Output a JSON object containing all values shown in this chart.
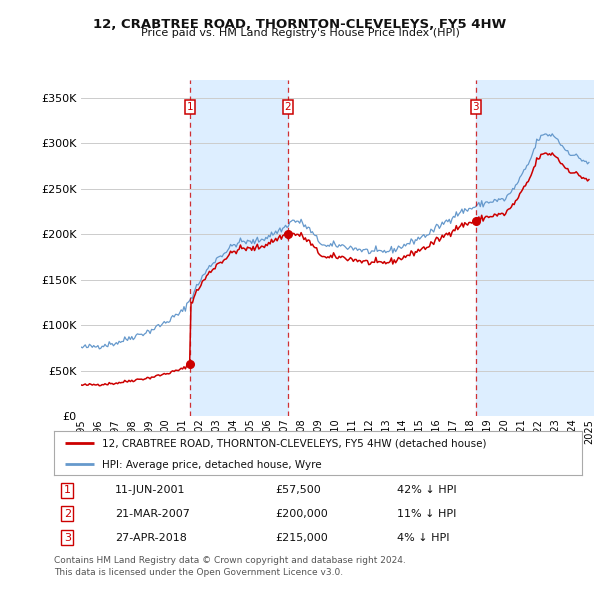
{
  "title": "12, CRABTREE ROAD, THORNTON-CLEVELEYS, FY5 4HW",
  "subtitle": "Price paid vs. HM Land Registry's House Price Index (HPI)",
  "xlim_start": 1995.0,
  "xlim_end": 2025.3,
  "ylim": [
    0,
    370000
  ],
  "yticks": [
    0,
    50000,
    100000,
    150000,
    200000,
    250000,
    300000,
    350000
  ],
  "ytick_labels": [
    "£0",
    "£50K",
    "£100K",
    "£150K",
    "£200K",
    "£250K",
    "£300K",
    "£350K"
  ],
  "xtick_years": [
    1995,
    1996,
    1997,
    1998,
    1999,
    2000,
    2001,
    2002,
    2003,
    2004,
    2005,
    2006,
    2007,
    2008,
    2009,
    2010,
    2011,
    2012,
    2013,
    2014,
    2015,
    2016,
    2017,
    2018,
    2019,
    2020,
    2021,
    2022,
    2023,
    2024,
    2025
  ],
  "sale_dates": [
    2001.44,
    2007.22,
    2018.32
  ],
  "sale_prices": [
    57500,
    200000,
    215000
  ],
  "sale_labels": [
    "1",
    "2",
    "3"
  ],
  "vline_color": "#cc0000",
  "sale_color": "#cc0000",
  "hpi_color": "#6699cc",
  "shade_color": "#ddeeff",
  "legend_label_sale": "12, CRABTREE ROAD, THORNTON-CLEVELEYS, FY5 4HW (detached house)",
  "legend_label_hpi": "HPI: Average price, detached house, Wyre",
  "table_rows": [
    [
      "1",
      "11-JUN-2001",
      "£57,500",
      "42% ↓ HPI"
    ],
    [
      "2",
      "21-MAR-2007",
      "£200,000",
      "11% ↓ HPI"
    ],
    [
      "3",
      "27-APR-2018",
      "£215,000",
      "4% ↓ HPI"
    ]
  ],
  "footnote1": "Contains HM Land Registry data © Crown copyright and database right 2024.",
  "footnote2": "This data is licensed under the Open Government Licence v3.0.",
  "bg_color": "#ffffff",
  "grid_color": "#cccccc",
  "box_color": "#cc0000",
  "hpi_anchors_t": [
    1995.0,
    1996.0,
    1997.0,
    1997.5,
    1998.0,
    1999.0,
    2000.0,
    2001.0,
    2001.5,
    2002.0,
    2002.5,
    2003.0,
    2003.5,
    2004.0,
    2004.5,
    2005.0,
    2005.5,
    2006.0,
    2006.5,
    2007.0,
    2007.5,
    2008.0,
    2008.5,
    2009.0,
    2009.5,
    2010.0,
    2010.5,
    2011.0,
    2011.5,
    2012.0,
    2012.5,
    2013.0,
    2013.5,
    2014.0,
    2014.5,
    2015.0,
    2015.5,
    2016.0,
    2016.5,
    2017.0,
    2017.5,
    2018.0,
    2018.5,
    2019.0,
    2019.5,
    2020.0,
    2020.5,
    2021.0,
    2021.5,
    2022.0,
    2022.5,
    2023.0,
    2023.5,
    2024.0,
    2024.5,
    2025.0
  ],
  "hpi_anchors_v": [
    75000,
    77000,
    80000,
    83000,
    87000,
    93000,
    103000,
    115000,
    130000,
    148000,
    162000,
    173000,
    180000,
    188000,
    192000,
    191000,
    193000,
    197000,
    202000,
    207000,
    215000,
    213000,
    205000,
    193000,
    186000,
    188000,
    187000,
    185000,
    183000,
    181000,
    180000,
    181000,
    183000,
    187000,
    191000,
    196000,
    200000,
    207000,
    213000,
    220000,
    225000,
    228000,
    232000,
    235000,
    237000,
    238000,
    248000,
    263000,
    280000,
    305000,
    310000,
    308000,
    295000,
    288000,
    283000,
    278000
  ]
}
